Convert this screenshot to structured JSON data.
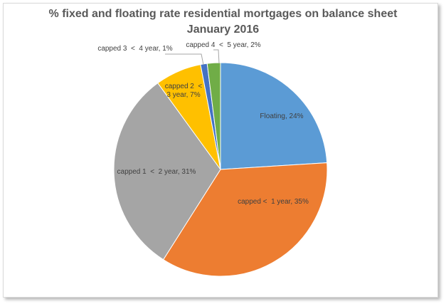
{
  "chart_data": {
    "type": "pie",
    "title": "% fixed and floating rate residential mortgages on balance sheet",
    "subtitle": "January 2016",
    "series": [
      {
        "values": [
          24,
          35,
          31,
          7,
          1,
          2
        ],
        "categories": [
          "Floating",
          "capped <  1 year",
          "capped 1  <  2 year",
          "capped 2  <  3 year",
          "capped 3  <  4 year",
          "capped 4  <  5 year"
        ]
      }
    ],
    "data_labels": [
      [
        "Floating, 24%"
      ],
      [
        "capped <  1 year, 35%"
      ],
      [
        "capped 1  <  2 year, 31%"
      ],
      [
        "capped 2  <",
        "3 year, 7%"
      ],
      [
        "capped 3  <  4 year, 1%"
      ],
      [
        "capped 4  <  5 year, 2%"
      ]
    ],
    "colors": [
      "#5b9bd5",
      "#ed7d31",
      "#a5a5a5",
      "#ffc000",
      "#4472c4",
      "#70ad47"
    ],
    "legend": "none"
  }
}
